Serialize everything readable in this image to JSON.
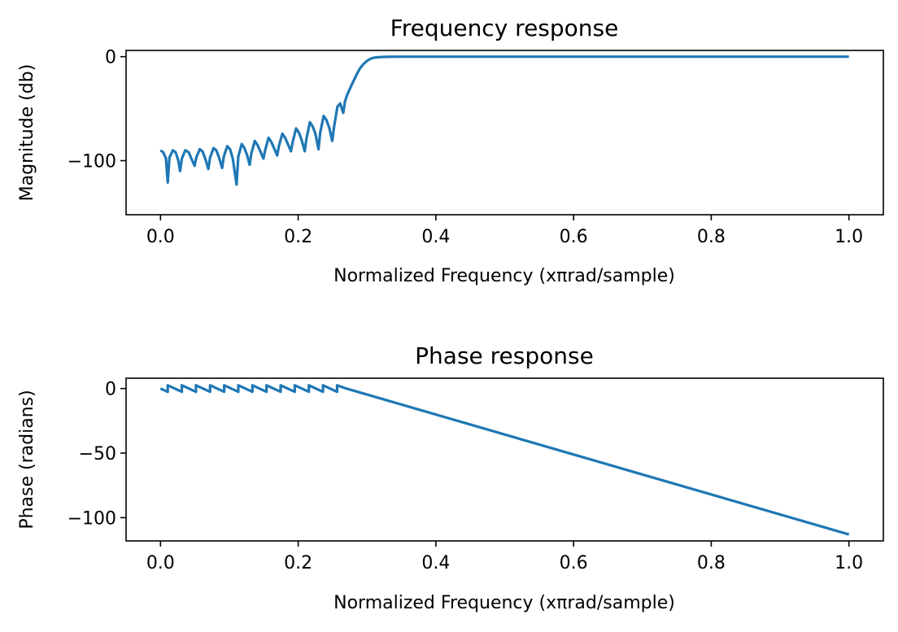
{
  "chart_data": [
    {
      "type": "line",
      "title": "Frequency response",
      "xlabel": "Normalized Frequency (xπrad/sample)",
      "ylabel": "Magnitude (db)",
      "xlim": [
        -0.05,
        1.05
      ],
      "ylim": [
        -152,
        6
      ],
      "xticks": [
        0.0,
        0.2,
        0.4,
        0.6,
        0.8,
        1.0
      ],
      "xtick_labels": [
        "0.0",
        "0.2",
        "0.4",
        "0.6",
        "0.8",
        "1.0"
      ],
      "yticks": [
        0,
        -100
      ],
      "ytick_labels": [
        "0",
        "−100"
      ],
      "grid": false,
      "series": [
        {
          "color": "#1f77b4",
          "points": [
            [
              0.0,
              -90
            ],
            [
              0.004,
              -92
            ],
            [
              0.008,
              -98
            ],
            [
              0.0105,
              -121
            ],
            [
              0.013,
              -97
            ],
            [
              0.018,
              -90
            ],
            [
              0.022,
              -92
            ],
            [
              0.0255,
              -99
            ],
            [
              0.0285,
              -110
            ],
            [
              0.031,
              -98
            ],
            [
              0.036,
              -90
            ],
            [
              0.041,
              -92
            ],
            [
              0.0455,
              -99
            ],
            [
              0.0495,
              -105
            ],
            [
              0.052,
              -97
            ],
            [
              0.057,
              -89
            ],
            [
              0.061,
              -91
            ],
            [
              0.065,
              -98
            ],
            [
              0.0695,
              -108
            ],
            [
              0.072,
              -97
            ],
            [
              0.077,
              -88
            ],
            [
              0.081,
              -90
            ],
            [
              0.085,
              -97
            ],
            [
              0.0895,
              -107
            ],
            [
              0.092,
              -96
            ],
            [
              0.097,
              -86
            ],
            [
              0.101,
              -89
            ],
            [
              0.105,
              -98
            ],
            [
              0.1105,
              -123
            ],
            [
              0.113,
              -96
            ],
            [
              0.118,
              -84
            ],
            [
              0.122,
              -88
            ],
            [
              0.126,
              -95
            ],
            [
              0.1295,
              -104
            ],
            [
              0.132,
              -93
            ],
            [
              0.137,
              -81
            ],
            [
              0.141,
              -85
            ],
            [
              0.145,
              -91
            ],
            [
              0.1495,
              -98
            ],
            [
              0.152,
              -90
            ],
            [
              0.157,
              -78
            ],
            [
              0.161,
              -82
            ],
            [
              0.165,
              -88
            ],
            [
              0.1695,
              -95
            ],
            [
              0.172,
              -86
            ],
            [
              0.177,
              -74
            ],
            [
              0.181,
              -78
            ],
            [
              0.185,
              -84
            ],
            [
              0.1895,
              -91
            ],
            [
              0.192,
              -82
            ],
            [
              0.197,
              -69
            ],
            [
              0.201,
              -73
            ],
            [
              0.205,
              -80
            ],
            [
              0.2095,
              -91
            ],
            [
              0.212,
              -79
            ],
            [
              0.217,
              -63
            ],
            [
              0.221,
              -67
            ],
            [
              0.225,
              -74
            ],
            [
              0.2295,
              -89
            ],
            [
              0.232,
              -73
            ],
            [
              0.237,
              -57
            ],
            [
              0.241,
              -61
            ],
            [
              0.245,
              -68
            ],
            [
              0.2495,
              -81
            ],
            [
              0.252,
              -68
            ],
            [
              0.257,
              -48
            ],
            [
              0.261,
              -45
            ],
            [
              0.2655,
              -54
            ],
            [
              0.268,
              -43
            ],
            [
              0.271,
              -37
            ],
            [
              0.275,
              -31
            ],
            [
              0.28,
              -24
            ],
            [
              0.285,
              -17
            ],
            [
              0.29,
              -11
            ],
            [
              0.295,
              -7
            ],
            [
              0.3,
              -4
            ],
            [
              0.305,
              -2
            ],
            [
              0.31,
              -1
            ],
            [
              0.318,
              -0.4
            ],
            [
              0.33,
              -0.1
            ],
            [
              0.345,
              0
            ],
            [
              1.0,
              0
            ]
          ]
        }
      ]
    },
    {
      "type": "line",
      "title": "Phase response",
      "xlabel": "Normalized Frequency (xπrad/sample)",
      "ylabel": "Phase (radians)",
      "xlim": [
        -0.05,
        1.05
      ],
      "ylim": [
        -118,
        8
      ],
      "xticks": [
        0.0,
        0.2,
        0.4,
        0.6,
        0.8,
        1.0
      ],
      "xtick_labels": [
        "0.0",
        "0.2",
        "0.4",
        "0.6",
        "0.8",
        "1.0"
      ],
      "yticks": [
        0,
        -50,
        -100
      ],
      "ytick_labels": [
        "0",
        "−50",
        "−100"
      ],
      "grid": false,
      "series": [
        {
          "color": "#1f77b4",
          "points": [
            [
              0.0,
              0
            ],
            [
              0.0105,
              -2.5
            ],
            [
              0.0105,
              2.5
            ],
            [
              0.031,
              -2.5
            ],
            [
              0.031,
              2.5
            ],
            [
              0.0515,
              -2.5
            ],
            [
              0.0515,
              2.5
            ],
            [
              0.072,
              -2.5
            ],
            [
              0.072,
              2.5
            ],
            [
              0.0925,
              -2.5
            ],
            [
              0.0925,
              2.5
            ],
            [
              0.113,
              -2.5
            ],
            [
              0.113,
              2.5
            ],
            [
              0.1335,
              -2.5
            ],
            [
              0.1335,
              2.5
            ],
            [
              0.154,
              -2.5
            ],
            [
              0.154,
              2.5
            ],
            [
              0.1745,
              -2.5
            ],
            [
              0.1745,
              2.5
            ],
            [
              0.195,
              -2.5
            ],
            [
              0.195,
              2.5
            ],
            [
              0.2155,
              -2.5
            ],
            [
              0.2155,
              2.5
            ],
            [
              0.236,
              -2.5
            ],
            [
              0.236,
              2.5
            ],
            [
              0.2565,
              -2.5
            ],
            [
              0.2565,
              2.5
            ],
            [
              0.27,
              0
            ],
            [
              1.0,
              -113
            ]
          ]
        }
      ]
    }
  ]
}
